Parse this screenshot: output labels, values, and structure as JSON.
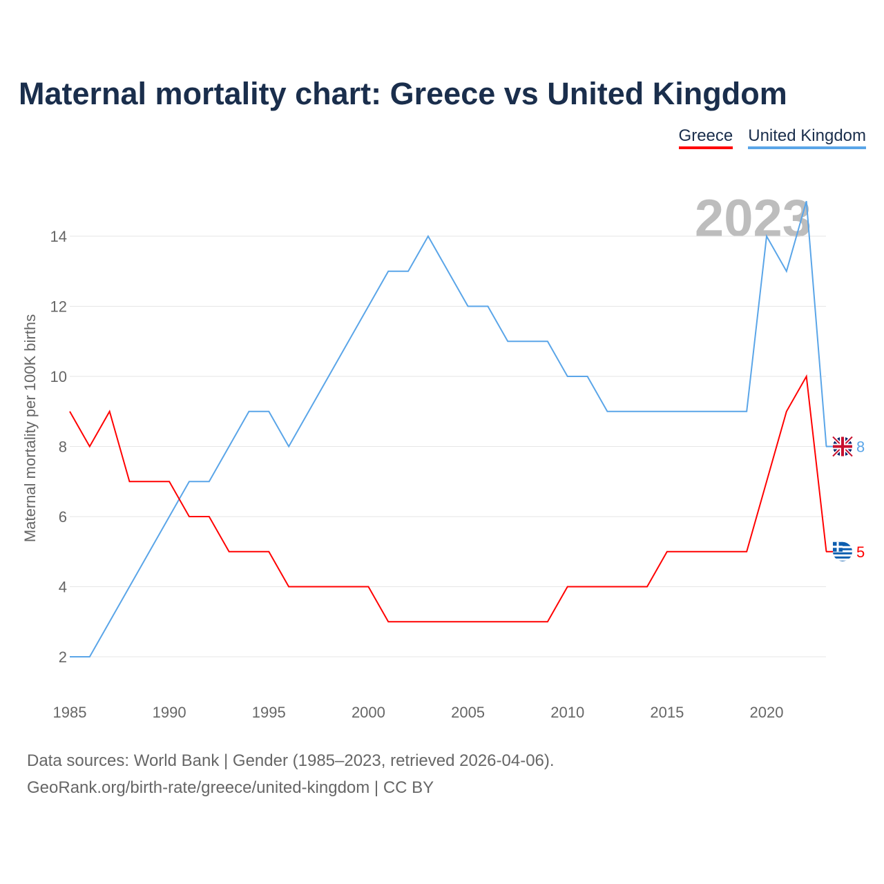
{
  "title": "Maternal mortality chart: Greece vs United Kingdom",
  "chart_data": {
    "type": "line",
    "title": "Maternal mortality chart: Greece vs United Kingdom",
    "ylabel": "Maternal mortality per 100K births",
    "xlabel": "",
    "ylim": [
      1,
      15.5
    ],
    "xlim": [
      1985,
      2023
    ],
    "yticks": [
      2,
      4,
      6,
      8,
      10,
      12,
      14
    ],
    "xticks": [
      1985,
      1990,
      1995,
      2000,
      2005,
      2010,
      2015,
      2020
    ],
    "grid": true,
    "legend_position": "top-right",
    "year_watermark": "2023",
    "x": [
      1985,
      1986,
      1987,
      1988,
      1989,
      1990,
      1991,
      1992,
      1993,
      1994,
      1995,
      1996,
      1997,
      1998,
      1999,
      2000,
      2001,
      2002,
      2003,
      2004,
      2005,
      2006,
      2007,
      2008,
      2009,
      2010,
      2011,
      2012,
      2013,
      2014,
      2015,
      2016,
      2017,
      2018,
      2019,
      2020,
      2021,
      2022,
      2023
    ],
    "series": [
      {
        "name": "Greece",
        "color": "#ff0000",
        "end_label": "5",
        "values": [
          9,
          8,
          9,
          7,
          7,
          7,
          6,
          6,
          5,
          5,
          5,
          4,
          4,
          4,
          4,
          4,
          3,
          3,
          3,
          3,
          3,
          3,
          3,
          3,
          3,
          4,
          4,
          4,
          4,
          4,
          5,
          5,
          5,
          5,
          5,
          7,
          9,
          10,
          5
        ]
      },
      {
        "name": "United Kingdom",
        "color": "#5aa5e8",
        "end_label": "8",
        "values": [
          2,
          2,
          3,
          4,
          5,
          6,
          7,
          7,
          8,
          9,
          9,
          8,
          9,
          10,
          11,
          12,
          13,
          13,
          14,
          13,
          12,
          12,
          11,
          11,
          11,
          10,
          10,
          9,
          9,
          9,
          9,
          9,
          9,
          9,
          9,
          14,
          13,
          15,
          8
        ]
      }
    ]
  },
  "source_line1": "Data sources: World Bank | Gender (1985–2023, retrieved 2026-04-06).",
  "source_line2": "GeoRank.org/birth-rate/greece/united-kingdom | CC BY"
}
